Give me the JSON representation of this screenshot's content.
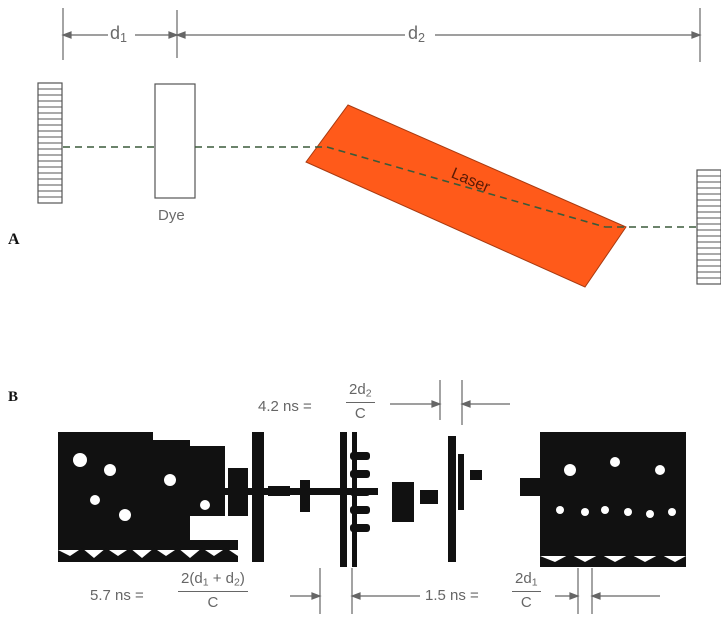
{
  "colors": {
    "laser": "#ff5a1a",
    "ink": "#6a6a6a",
    "film": "#111111"
  },
  "panel_a": {
    "label": "A",
    "d1": "d",
    "d1_sub": "1",
    "d2": "d",
    "d2_sub": "2",
    "dye_label": "Dye",
    "laser_label": "Laser"
  },
  "panel_b": {
    "label": "B",
    "top_time": "4.2 ns =",
    "top_num": "2d",
    "top_num_sub": "2",
    "top_den": "C",
    "left_time": "5.7 ns =",
    "left_num_a": "2(d",
    "left_num_sub1": "1",
    "left_num_b": " + d",
    "left_num_sub2": "2",
    "left_num_c": ")",
    "left_den": "C",
    "mid_time": "1.5 ns =",
    "mid_num": "2d",
    "mid_num_sub": "1",
    "mid_den": "C"
  }
}
